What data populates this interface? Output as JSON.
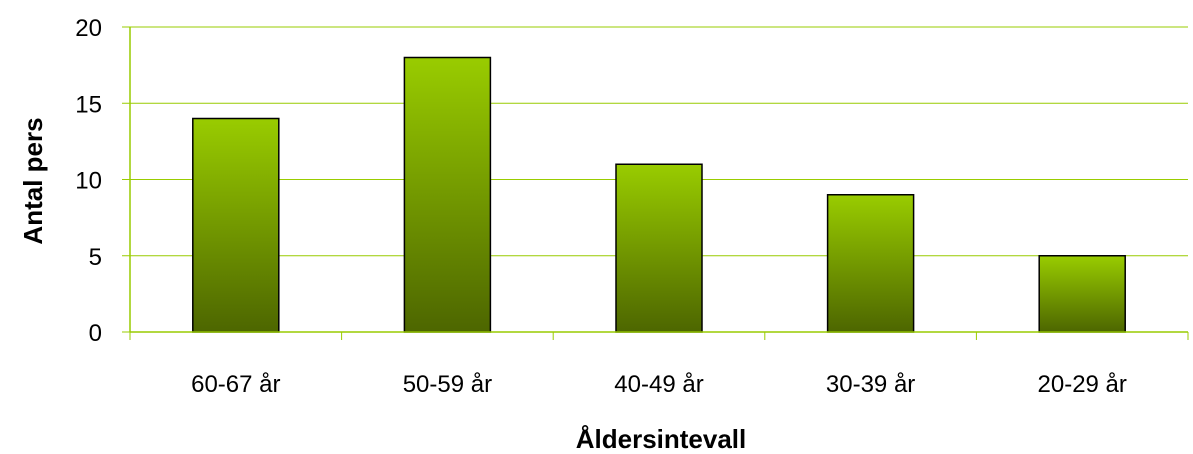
{
  "chart_data": {
    "type": "bar",
    "categories": [
      "60-67 år",
      "50-59 år",
      "40-49 år",
      "30-39 år",
      "20-29 år"
    ],
    "values": [
      14,
      18,
      11,
      9,
      5
    ],
    "title": "",
    "xlabel": "Åldersintevall",
    "ylabel": "Antal pers",
    "ylim": [
      0,
      20
    ],
    "yticks": [
      0,
      5,
      10,
      15,
      20
    ],
    "grid": true,
    "legend": "none",
    "colors": {
      "bar_top": "#99cc00",
      "bar_bottom": "#4d6600",
      "bar_edge": "#000000",
      "grid": "#99cc00",
      "axis": "#99cc00"
    }
  }
}
